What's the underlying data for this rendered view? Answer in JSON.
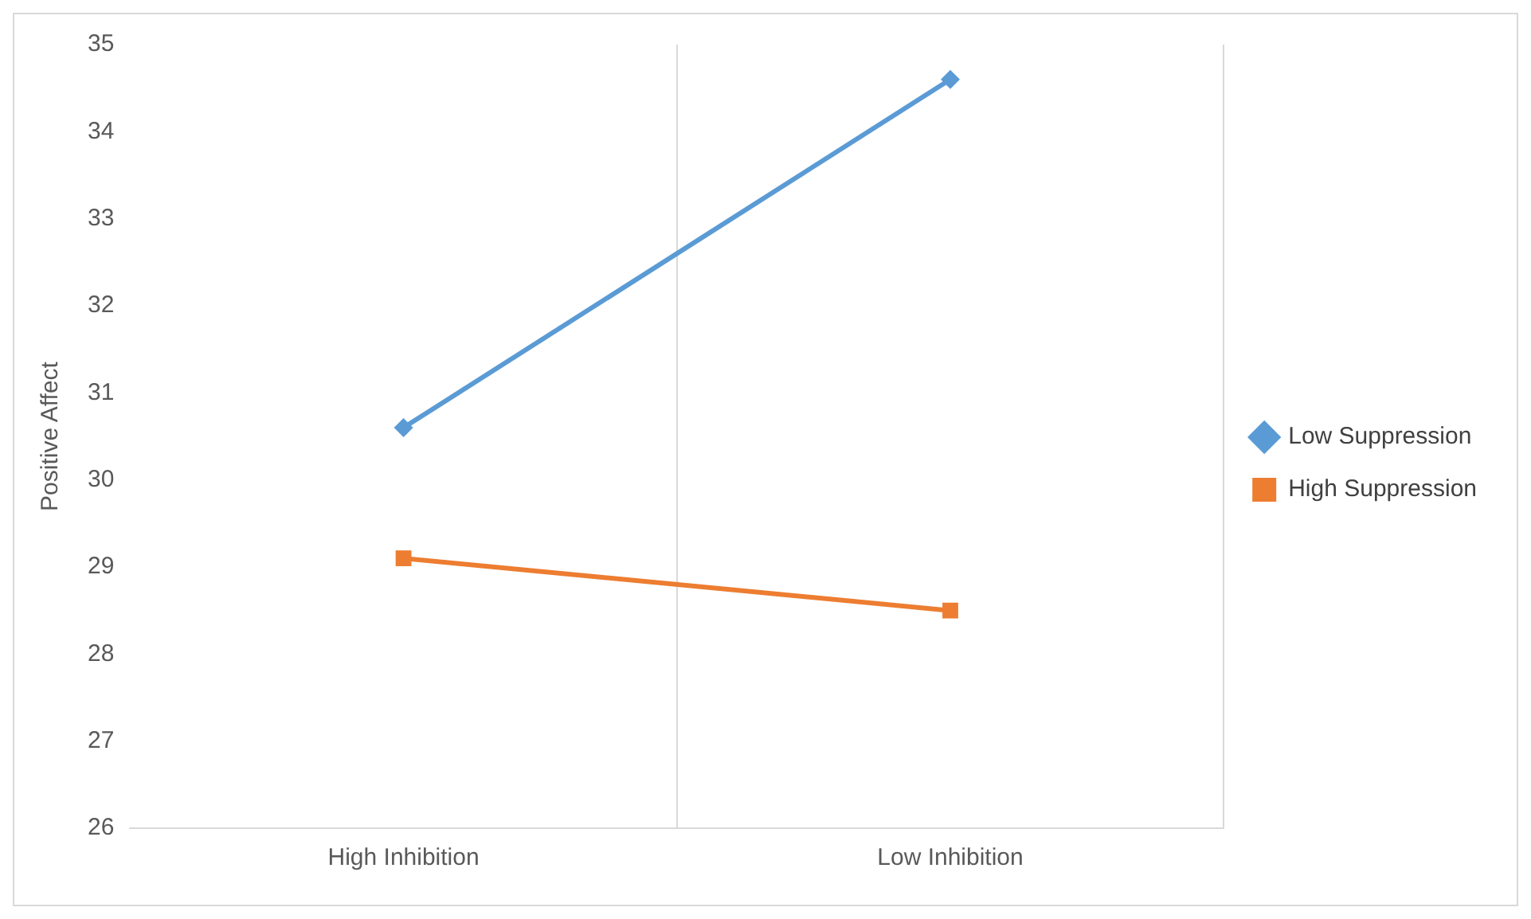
{
  "chart_data": {
    "type": "line",
    "ylabel": "Positive Affect",
    "categories": [
      "High Inhibition",
      "Low Inhibition"
    ],
    "series": [
      {
        "name": "Low Suppression",
        "color": "#5b9bd5",
        "values": [
          30.6,
          34.6
        ],
        "marker": "diamond"
      },
      {
        "name": "High Suppression",
        "color": "#ed7d31",
        "values": [
          29.1,
          28.5
        ],
        "marker": "square"
      }
    ],
    "ylim": [
      26,
      35
    ],
    "yticks": [
      26,
      27,
      28,
      29,
      30,
      31,
      32,
      33,
      34,
      35
    ],
    "grid": "x",
    "legend": "right"
  }
}
